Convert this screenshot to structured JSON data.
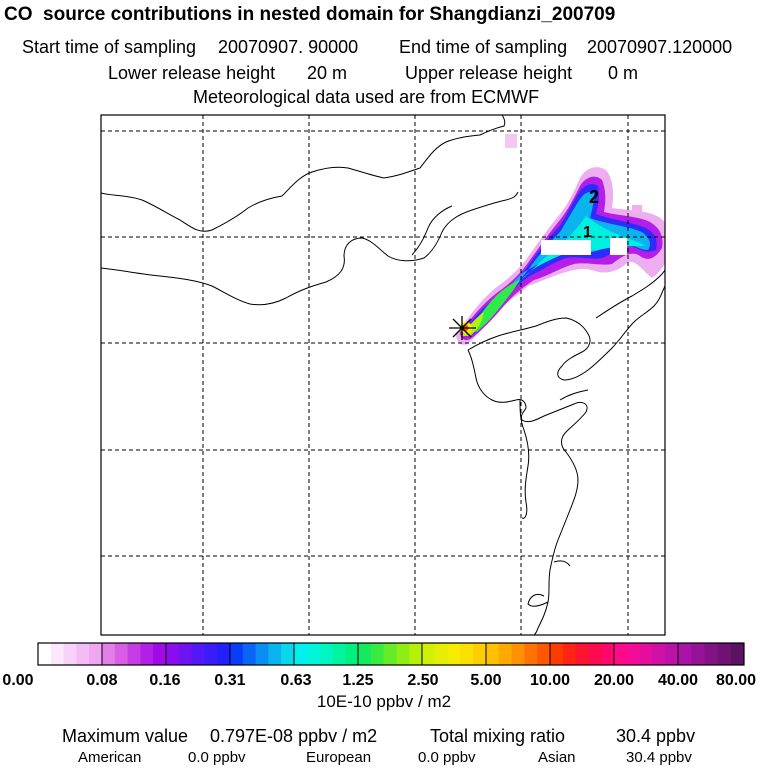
{
  "header": {
    "title": "CO  source contributions in nested domain for Shangdianzi_200709",
    "start_label": "Start time of sampling",
    "start_value": "20070907. 90000",
    "end_label": "End time of sampling",
    "end_value": "20070907.120000",
    "lower_label": "Lower release height",
    "lower_value": "20 m",
    "upper_label": "Upper release height",
    "upper_value": "0 m",
    "met_line": "Meteorological data used are from ECMWF"
  },
  "map": {
    "contour_labels": [
      "2",
      "1"
    ],
    "receptor_marker": "star-icon"
  },
  "colorbar": {
    "tick_labels": [
      "0.00",
      "0.08",
      "0.16",
      "0.31",
      "0.63",
      "1.25",
      "2.50",
      "5.00",
      "10.00",
      "20.00",
      "40.00",
      "80.00"
    ],
    "unit": "10E-10 ppbv / m2",
    "colors": {
      "seg0": [
        "#ffffff",
        "#fce8fb",
        "#f8d2f8",
        "#f4bcf4",
        "#f0a6f0"
      ],
      "seg1": [
        "#e57fe8",
        "#d85ee6",
        "#c63de6",
        "#b31fe6",
        "#a00ae6"
      ],
      "seg2": [
        "#8a0cef",
        "#6e14f3",
        "#5418f7",
        "#3a1cfa",
        "#2220fd"
      ],
      "seg3": [
        "#0a3cfb",
        "#0a66f7",
        "#0a8ef3",
        "#0ab4ef",
        "#0ad6ec"
      ],
      "seg4": [
        "#00f0f0",
        "#00f5dc",
        "#00f6c0",
        "#00f4a0",
        "#00f080"
      ],
      "seg5": [
        "#14ea60",
        "#3aea40",
        "#64ec28",
        "#8cee14",
        "#b4f008"
      ],
      "seg6": [
        "#d2f005",
        "#e6ee03",
        "#f6ec00",
        "#fae000",
        "#fcd000"
      ],
      "seg7": [
        "#ffc000",
        "#ffa800",
        "#ff9000",
        "#ff7400",
        "#ff5800"
      ],
      "seg8": [
        "#ff3c00",
        "#ff2414",
        "#ff1430",
        "#ff0a4e",
        "#ff086c"
      ],
      "seg9": [
        "#ff0a8a",
        "#f50c96",
        "#e30e9e",
        "#d010a6",
        "#bd12aa"
      ],
      "seg10": [
        "#aa12a8",
        "#961298",
        "#821286",
        "#6e1274",
        "#5a1262"
      ]
    }
  },
  "summary": {
    "max_label": "Maximum value",
    "max_value": "0.797E-08 ppbv / m2",
    "total_label": "Total mixing ratio",
    "total_value": "30.4 ppbv",
    "american_label": "American",
    "american_value": "0.0 ppbv",
    "european_label": "European",
    "european_value": "0.0 ppbv",
    "asian_label": "Asian",
    "asian_value": "30.4 ppbv"
  }
}
